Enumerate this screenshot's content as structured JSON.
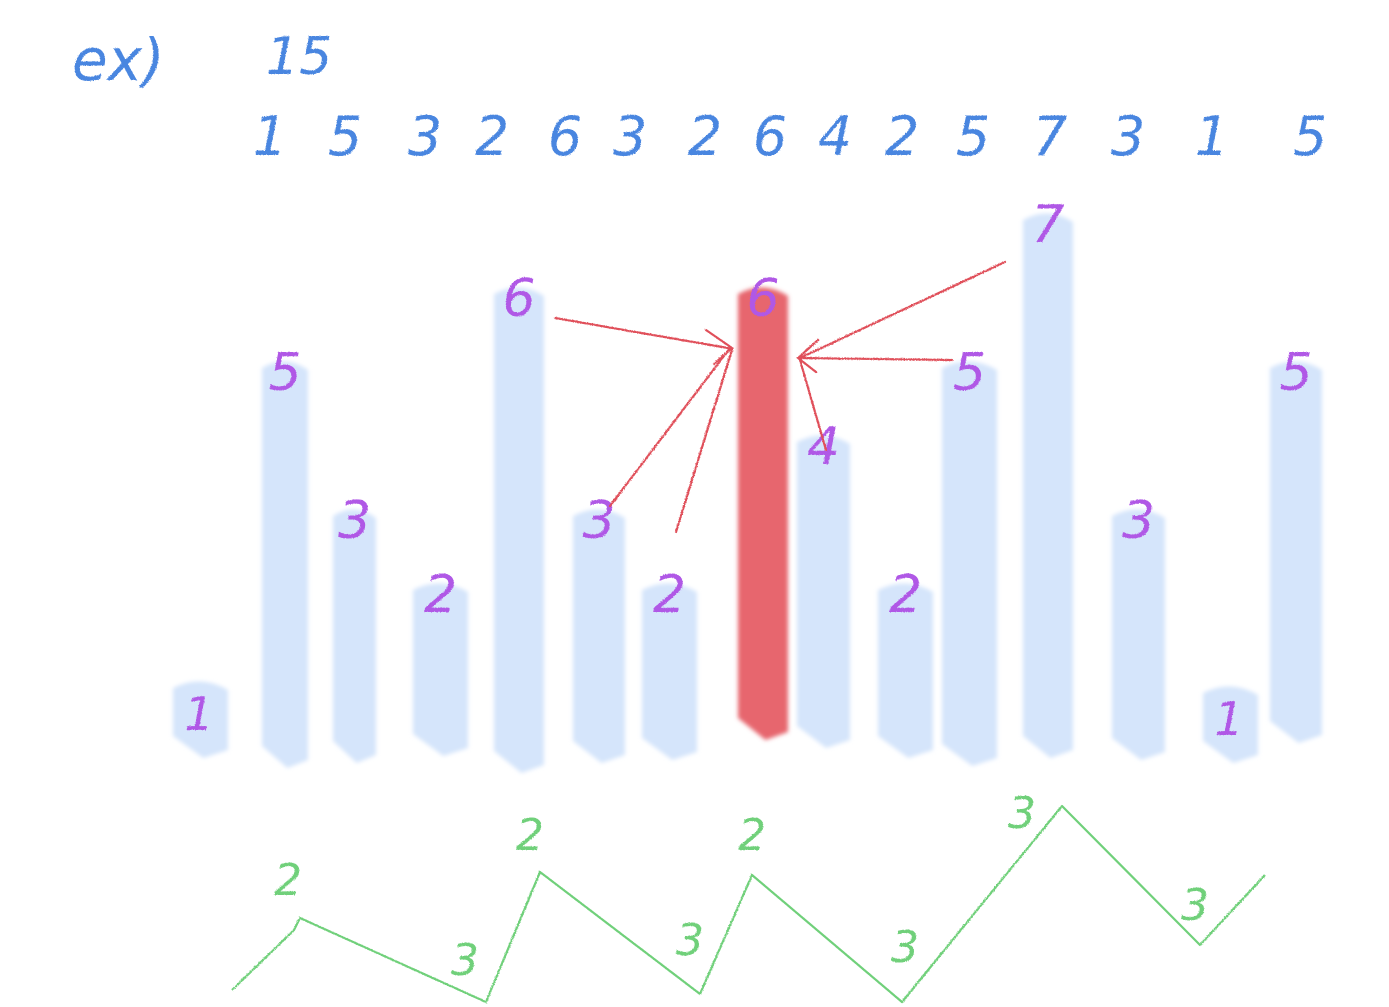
{
  "header": {
    "prefix": "ex)",
    "n": "15"
  },
  "sequence": [
    "1",
    "5",
    "3",
    "2",
    "6",
    "3",
    "2",
    "6",
    "4",
    "2",
    "5",
    "7",
    "3",
    "1",
    "5"
  ],
  "bars": {
    "values": [
      1,
      5,
      3,
      2,
      6,
      3,
      2,
      6,
      4,
      2,
      5,
      7,
      3,
      1,
      5
    ],
    "labels": [
      "1",
      "5",
      "3",
      "2",
      "6",
      "3",
      "2",
      "6",
      "4",
      "2",
      "5",
      "7",
      "3",
      "1",
      "5"
    ],
    "highlight_index": 7,
    "highlight_color": "#e4545e",
    "bar_color": "#d3e4fb"
  },
  "zigzag": {
    "labels": [
      "2",
      "3",
      "2",
      "3",
      "2",
      "3",
      "3",
      "3"
    ],
    "color": "#6fd07a"
  },
  "colors": {
    "header_ink": "#4a86e0",
    "label_ink": "#b058e6",
    "arrow_ink": "#e0505a"
  }
}
